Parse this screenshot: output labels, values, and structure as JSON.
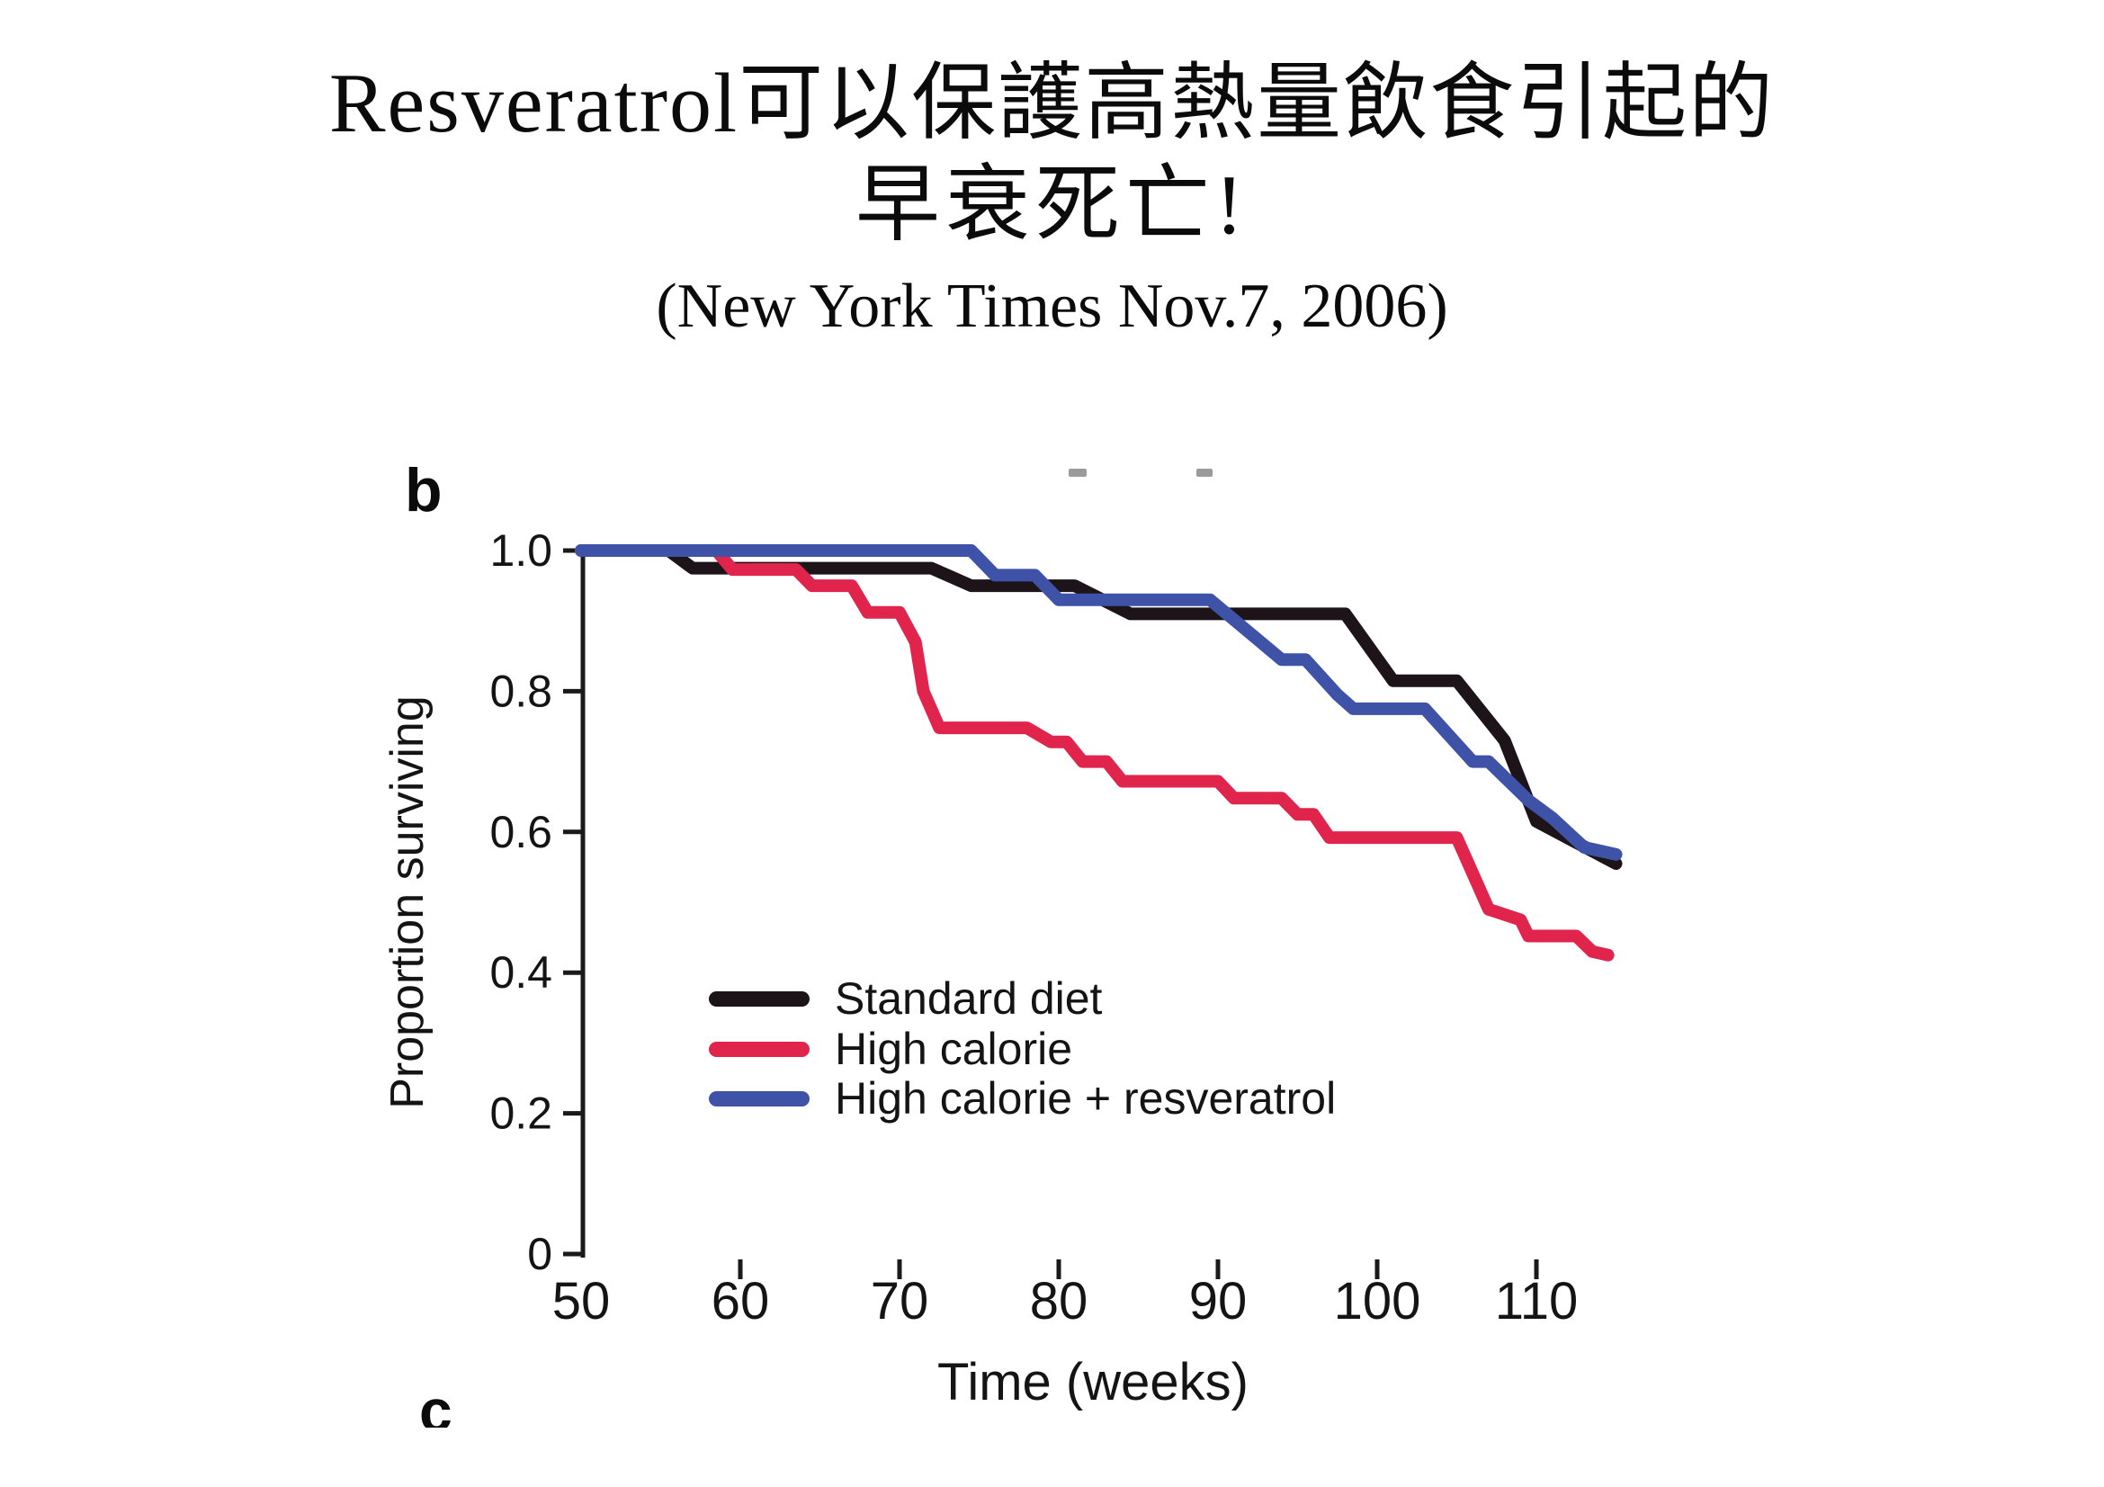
{
  "slide": {
    "title_line1": "Resveratrol可以保護高熱量飲食引起的",
    "title_line2": "早衰死亡!",
    "subtitle": "(New York Times Nov.7, 2006)"
  },
  "chart_data": {
    "type": "line",
    "chart_kind": "kaplan-meier-survival-curves",
    "panel_label": "b",
    "next_panel_label_partial": "c",
    "title": "",
    "xlabel": "Time (weeks)",
    "ylabel": "Proportion surviving",
    "xlim": [
      50,
      115
    ],
    "ylim": [
      0,
      1.0
    ],
    "x_ticks": [
      50,
      60,
      70,
      80,
      90,
      100,
      110
    ],
    "y_ticks": [
      0,
      0.2,
      0.4,
      0.6,
      0.8,
      1.0
    ],
    "y_tick_labels": [
      "0",
      "0.2",
      "0.4",
      "0.6",
      "0.8",
      "1.0"
    ],
    "grid": false,
    "legend_position": "inside-lower-left",
    "axis_color": "#1a1a1a",
    "background": "#ffffff",
    "artifacts": {
      "top_crop_dash_count": 2
    },
    "series": [
      {
        "name": "Standard diet",
        "color": "#1c1418",
        "points": [
          [
            50,
            1.0
          ],
          [
            55.5,
            1.0
          ],
          [
            57,
            0.975
          ],
          [
            72,
            0.975
          ],
          [
            74.5,
            0.95
          ],
          [
            81,
            0.95
          ],
          [
            84.5,
            0.91
          ],
          [
            98,
            0.91
          ],
          [
            101,
            0.815
          ],
          [
            105,
            0.815
          ],
          [
            108,
            0.73
          ],
          [
            110,
            0.615
          ],
          [
            112.5,
            0.585
          ],
          [
            115,
            0.555
          ]
        ]
      },
      {
        "name": "High calorie",
        "color": "#e1244b",
        "points": [
          [
            50,
            1.0
          ],
          [
            58.5,
            1.0
          ],
          [
            59.5,
            0.973
          ],
          [
            63.5,
            0.973
          ],
          [
            64.5,
            0.95
          ],
          [
            67,
            0.95
          ],
          [
            68,
            0.912
          ],
          [
            70,
            0.912
          ],
          [
            71,
            0.87
          ],
          [
            71.5,
            0.8
          ],
          [
            72.5,
            0.748
          ],
          [
            78,
            0.748
          ],
          [
            79.5,
            0.728
          ],
          [
            80.5,
            0.728
          ],
          [
            81.5,
            0.7
          ],
          [
            83,
            0.7
          ],
          [
            84,
            0.672
          ],
          [
            90,
            0.672
          ],
          [
            91,
            0.648
          ],
          [
            94,
            0.648
          ],
          [
            95,
            0.625
          ],
          [
            96,
            0.625
          ],
          [
            97,
            0.592
          ],
          [
            105,
            0.592
          ],
          [
            107,
            0.49
          ],
          [
            109,
            0.475
          ],
          [
            109.5,
            0.452
          ],
          [
            112.5,
            0.452
          ],
          [
            113.5,
            0.43
          ],
          [
            114.5,
            0.425
          ]
        ]
      },
      {
        "name": "High calorie + resveratrol",
        "color": "#3e53a8",
        "points": [
          [
            50,
            1.0
          ],
          [
            74.5,
            1.0
          ],
          [
            76,
            0.965
          ],
          [
            78.5,
            0.965
          ],
          [
            80,
            0.93
          ],
          [
            89.5,
            0.93
          ],
          [
            94,
            0.845
          ],
          [
            95.5,
            0.845
          ],
          [
            97.5,
            0.795
          ],
          [
            98.5,
            0.775
          ],
          [
            103,
            0.775
          ],
          [
            106,
            0.7
          ],
          [
            107,
            0.7
          ],
          [
            109.5,
            0.645
          ],
          [
            111,
            0.62
          ],
          [
            113,
            0.578
          ],
          [
            115,
            0.568
          ]
        ]
      }
    ]
  }
}
